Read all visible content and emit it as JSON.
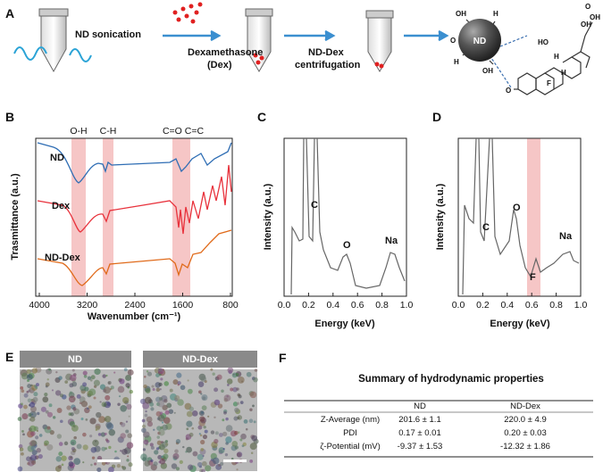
{
  "panels": {
    "a": {
      "label": "A",
      "step1": "ND sonication",
      "step2": [
        "Dexamethasone",
        "(Dex)"
      ],
      "step3": [
        "ND-Dex",
        "centrifugation"
      ],
      "molecule": {
        "core": "ND",
        "atoms": [
          "OH",
          "H",
          "O",
          "H",
          "OH",
          "HO",
          "O",
          "OH",
          "OH",
          "H",
          "F",
          "H",
          "O"
        ]
      }
    },
    "b": {
      "label": "B",
      "bands": [
        "O-H",
        "C-H",
        "C=O C=C"
      ],
      "series": [
        "ND",
        "Dex",
        "ND-Dex"
      ],
      "xticks": [
        "4000",
        "3200",
        "2400",
        "1600",
        "800"
      ],
      "x_label": "Wavenumber (cm⁻¹)",
      "y_label": "Trasmittance (a.u.)"
    },
    "c": {
      "label": "C",
      "peaks": [
        "C",
        "O",
        "Na"
      ],
      "xticks": [
        "0.0",
        "0.2",
        "0.4",
        "0.6",
        "0.8",
        "1.0"
      ],
      "x_label": "Energy (keV)",
      "y_label": "Intensity (a.u.)"
    },
    "d": {
      "label": "D",
      "peaks": [
        "C",
        "O",
        "F",
        "Na"
      ],
      "xticks": [
        "0.0",
        "0.2",
        "0.4",
        "0.6",
        "0.8",
        "1.0"
      ],
      "x_label": "Energy (keV)",
      "y_label": "Intensity (a.u.)"
    },
    "e": {
      "label": "E",
      "images": [
        "ND",
        "ND-Dex"
      ]
    },
    "f": {
      "label": "F",
      "title": "Summary of hydrodynamic properties",
      "columns": [
        "ND",
        "ND-Dex"
      ],
      "rows": [
        [
          "Z-Average (nm)",
          "201.6 ± 1.1",
          "220.0 ± 4.9"
        ],
        [
          "PDI",
          "0.17 ± 0.01",
          "0.20 ± 0.03"
        ],
        [
          "ζ-Potential (mV)",
          "-9.37 ± 1.53",
          "-12.32 ± 1.86"
        ]
      ]
    }
  }
}
